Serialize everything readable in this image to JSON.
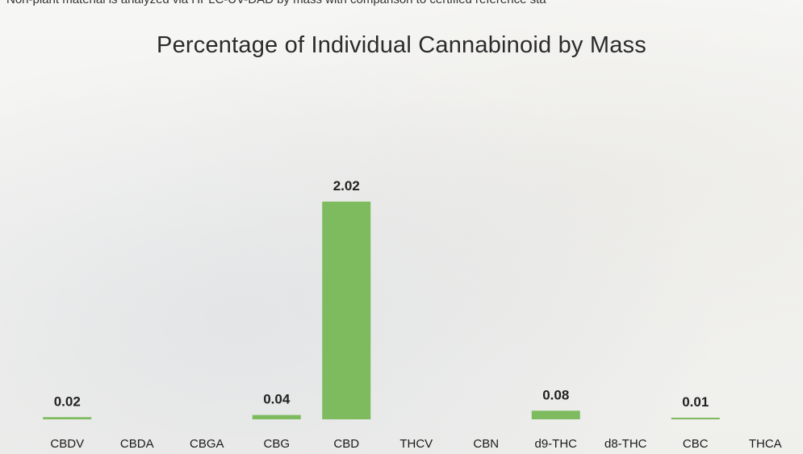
{
  "header_note": "Non-plant material is analyzed via HPLC-UV-DAD by mass with comparison to certified reference sta",
  "chart_data": {
    "type": "bar",
    "title": "Percentage of Individual Cannabinoid by Mass",
    "xlabel": "",
    "ylabel": "",
    "categories": [
      "CBDV",
      "CBDA",
      "CBGA",
      "CBG",
      "CBD",
      "THCV",
      "CBN",
      "d9-THC",
      "d8-THC",
      "CBC",
      "THCA"
    ],
    "values": [
      0.02,
      null,
      null,
      0.04,
      2.02,
      null,
      null,
      0.08,
      null,
      0.01,
      null
    ],
    "data_labels": [
      "0.02",
      "",
      "",
      "0.04",
      "2.02",
      "",
      "",
      "0.08",
      "",
      "0.01",
      ""
    ],
    "ylim": [
      0,
      2.02
    ],
    "grid": false,
    "legend": "none",
    "bar_color": "#7dbb5e"
  }
}
